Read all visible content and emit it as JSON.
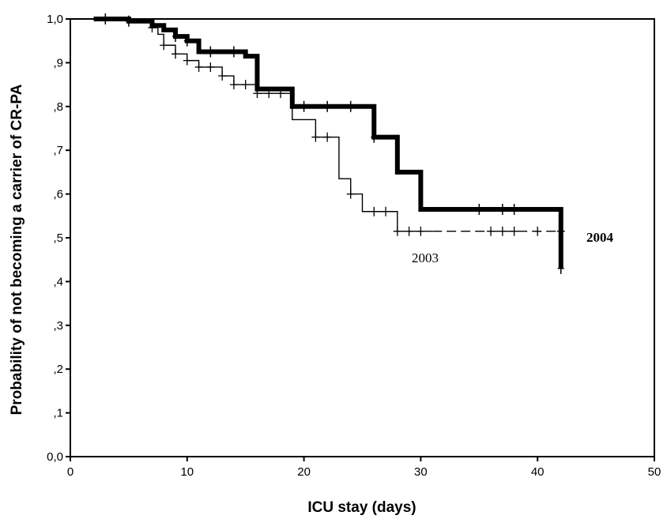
{
  "chart_data": {
    "type": "line",
    "title": "",
    "xlabel": "ICU stay (days)",
    "ylabel": "Probability of not becoming a carrier of CR-PA",
    "xlim": [
      0,
      50
    ],
    "ylim": [
      0,
      1
    ],
    "x_ticks": [
      0,
      10,
      20,
      30,
      40,
      50
    ],
    "x_tick_labels": [
      "0",
      "10",
      "20",
      "30",
      "40",
      "50"
    ],
    "y_ticks": [
      0,
      0.1,
      0.2,
      0.3,
      0.4,
      0.5,
      0.6,
      0.7,
      0.8,
      0.9,
      1.0
    ],
    "y_tick_labels": [
      "0,0",
      ",1",
      ",2",
      ",3",
      ",4",
      ",5",
      ",6",
      ",7",
      ",8",
      ",9",
      "1,0"
    ],
    "grid": false,
    "series": [
      {
        "name": "2004",
        "color": "#000000",
        "style": "thick-step",
        "steps": [
          [
            2,
            1.0
          ],
          [
            5,
            0.995
          ],
          [
            7,
            0.985
          ],
          [
            8,
            0.975
          ],
          [
            9,
            0.96
          ],
          [
            10,
            0.95
          ],
          [
            11,
            0.925
          ],
          [
            15,
            0.915
          ],
          [
            16,
            0.84
          ],
          [
            19,
            0.8
          ],
          [
            26,
            0.73
          ],
          [
            28,
            0.65
          ],
          [
            30,
            0.565
          ],
          [
            42,
            0.43
          ]
        ],
        "censored": [
          3,
          5,
          9,
          10,
          12,
          14,
          20,
          22,
          24,
          26,
          35,
          37,
          38,
          42
        ]
      },
      {
        "name": "2003",
        "color": "#000000",
        "style": "thin-step",
        "steps": [
          [
            2,
            1.0
          ],
          [
            7,
            0.98
          ],
          [
            7.5,
            0.965
          ],
          [
            8,
            0.94
          ],
          [
            9,
            0.92
          ],
          [
            10,
            0.905
          ],
          [
            11,
            0.89
          ],
          [
            13,
            0.87
          ],
          [
            14,
            0.85
          ],
          [
            16,
            0.83
          ],
          [
            19,
            0.77
          ],
          [
            21,
            0.73
          ],
          [
            23,
            0.635
          ],
          [
            24,
            0.6
          ],
          [
            25,
            0.56
          ],
          [
            28,
            0.515
          ]
        ],
        "censored": [
          3,
          7,
          8,
          9,
          10,
          11,
          12,
          13,
          14,
          15,
          16,
          17,
          18,
          21,
          22,
          24,
          26,
          27,
          28,
          29,
          30,
          36,
          37,
          38,
          40,
          42
        ],
        "dashed_from": 31
      }
    ],
    "labels": {
      "series_2004": "2004",
      "series_2003": "2003"
    }
  }
}
